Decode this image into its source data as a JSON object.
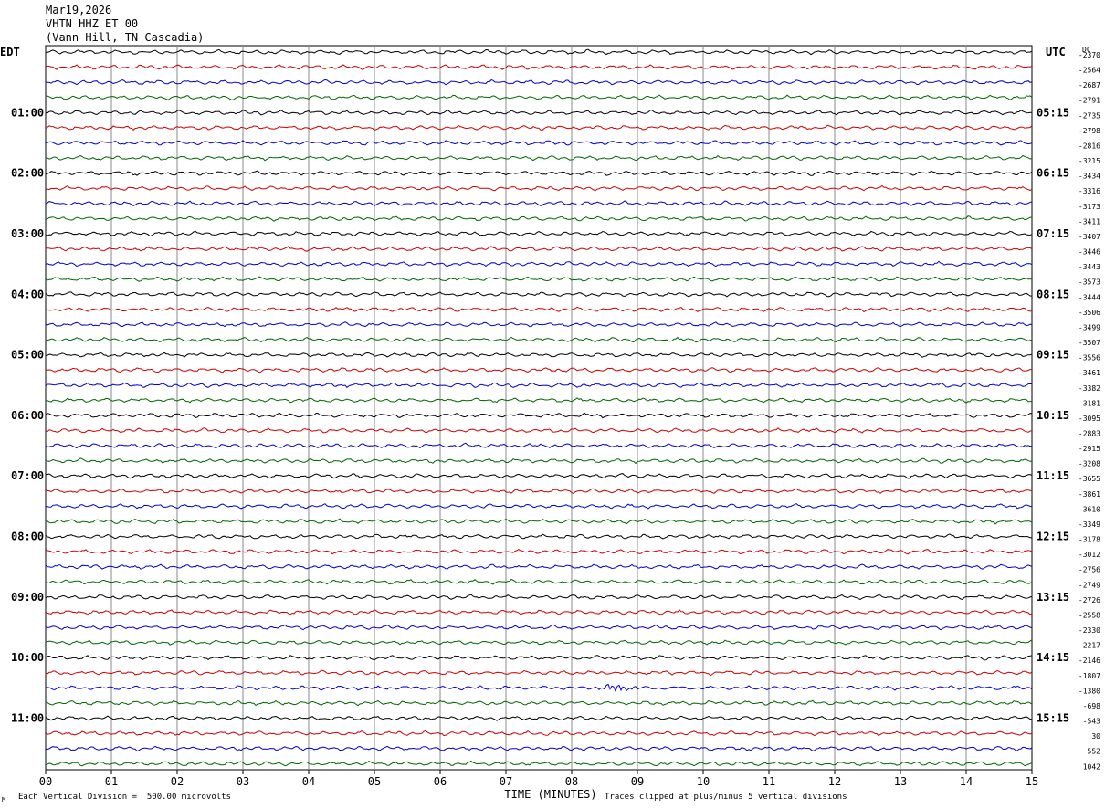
{
  "header": {
    "date": "Mar19,2026",
    "station": "VHTN HHZ ET 00",
    "location": "(Vann Hill, TN Cascadia)"
  },
  "left_tz": "EDT",
  "right_tz": "UTC",
  "dc_label": "DC",
  "footer": {
    "scale_note": "Each Vertical Division =  500.00 microvolts",
    "clip_note": "Traces clipped at plus/minus 5 vertical divisions",
    "mark": "M"
  },
  "colors": {
    "trace_cycle": [
      "#000000",
      "#cc0000",
      "#0000cc",
      "#006600"
    ],
    "grid": "#888888"
  },
  "chart_data": {
    "type": "line",
    "title": "VHTN HHZ ET 00",
    "xlabel": "TIME (MINUTES)",
    "ylabel": "",
    "x_ticks": [
      "00",
      "01",
      "02",
      "03",
      "04",
      "05",
      "06",
      "07",
      "08",
      "09",
      "10",
      "11",
      "12",
      "13",
      "14",
      "15"
    ],
    "xlim": [
      0,
      15
    ],
    "left_hour_labels": [
      "01:00",
      "02:00",
      "03:00",
      "04:00",
      "05:00",
      "06:00",
      "07:00",
      "08:00",
      "09:00",
      "10:00",
      "11:00"
    ],
    "right_hour_labels": [
      "05:15",
      "06:15",
      "07:15",
      "08:15",
      "09:15",
      "10:15",
      "11:15",
      "12:15",
      "13:15",
      "14:15",
      "15:15"
    ],
    "dc_offsets": [
      "-2370",
      "-2564",
      "-2687",
      "-2791",
      "-2735",
      "-2798",
      "-2816",
      "-3215",
      "-3434",
      "-3316",
      "-3173",
      "-3411",
      "-3407",
      "-3446",
      "-3443",
      "-3573",
      "-3444",
      "-3506",
      "-3499",
      "-3507",
      "-3556",
      "-3461",
      "-3382",
      "-3181",
      "-3095",
      "-2883",
      "-2915",
      "-3208",
      "-3655",
      "-3861",
      "-3610",
      "-3349",
      "-3178",
      "-3012",
      "-2756",
      "-2749",
      "-2726",
      "-2558",
      "-2330",
      "-2217",
      "-2146",
      "-1807",
      "-1380",
      "-698",
      "-543",
      "30",
      "552",
      "1042"
    ],
    "annotations": [
      {
        "trace": 42,
        "x_min": [
          8.3,
          9.1
        ],
        "note": "burst"
      }
    ]
  }
}
